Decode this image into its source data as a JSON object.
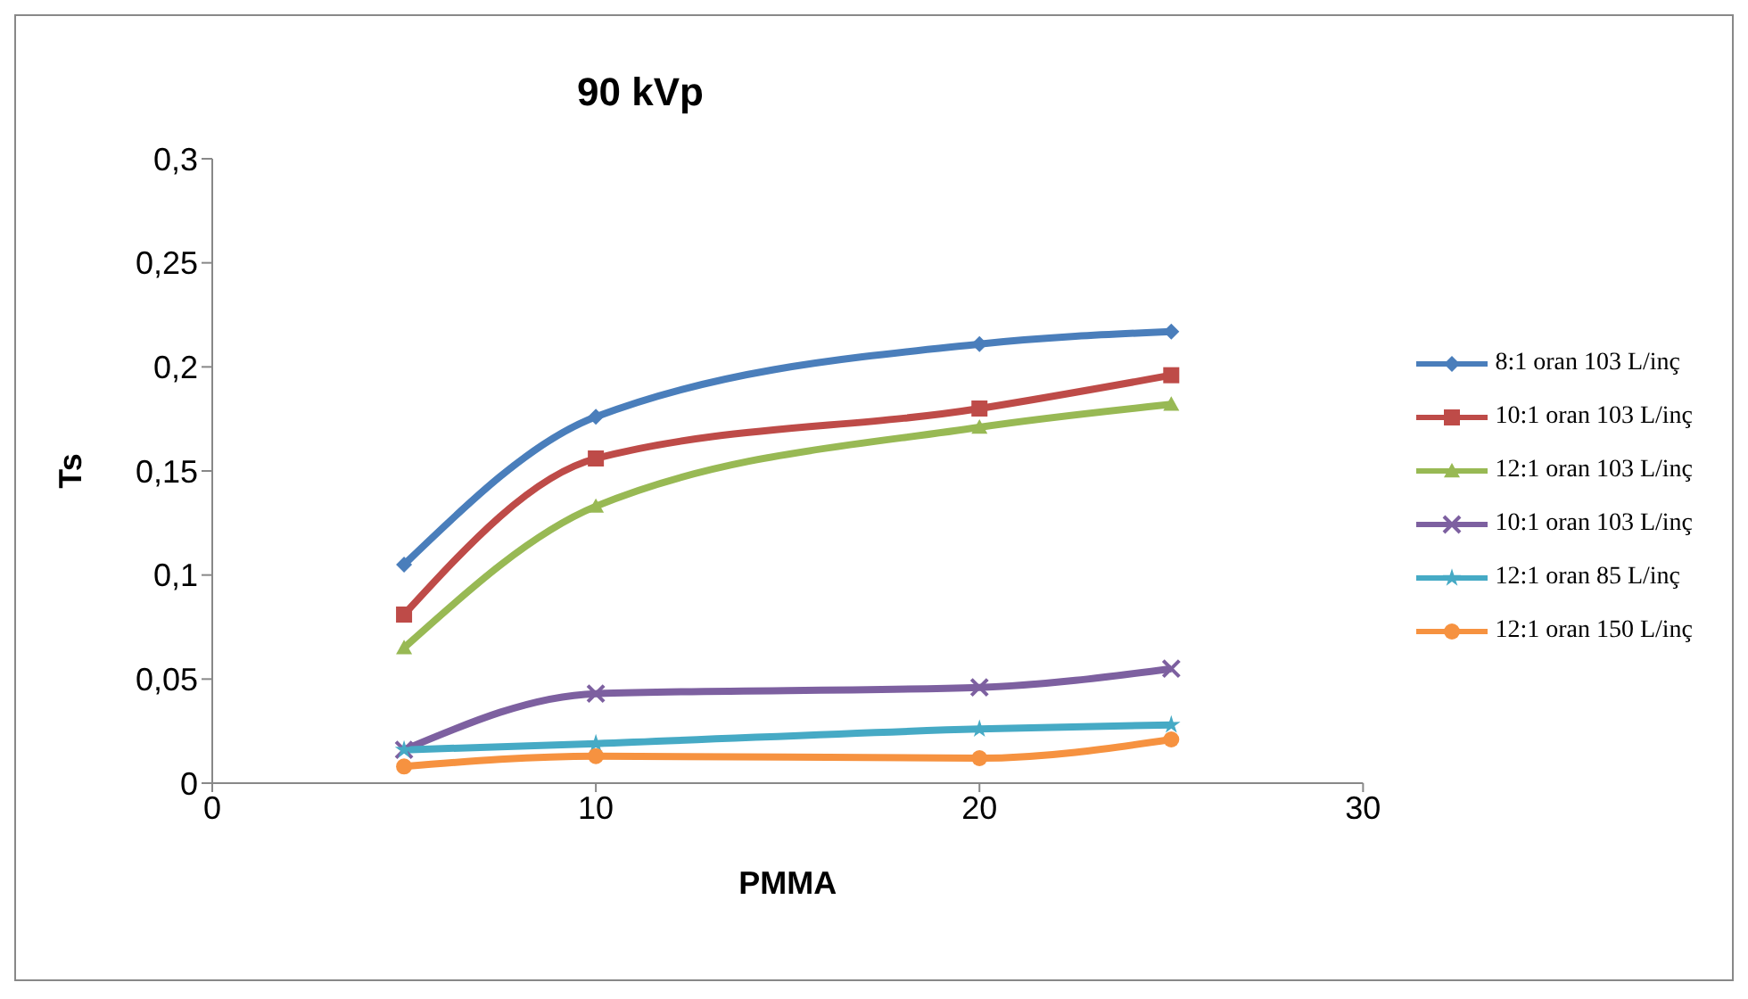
{
  "chart_data": {
    "type": "line",
    "title": "90 kVp",
    "xlabel": "PMMA",
    "ylabel": "Ts",
    "x": [
      5,
      10,
      20,
      25
    ],
    "series": [
      {
        "name": "8:1 oran 103 L/inç",
        "color": "#4a7ebb",
        "marker": "diamond",
        "values": [
          0.105,
          0.176,
          0.211,
          0.217
        ]
      },
      {
        "name": "10:1 oran 103 L/inç",
        "color": "#be4b48",
        "marker": "square",
        "values": [
          0.081,
          0.156,
          0.18,
          0.196
        ]
      },
      {
        "name": "12:1 oran 103 L/inç",
        "color": "#98b954",
        "marker": "triangle",
        "values": [
          0.065,
          0.133,
          0.171,
          0.182
        ]
      },
      {
        "name": "10:1 oran 103 L/inç",
        "color": "#7d60a0",
        "marker": "cross",
        "values": [
          0.016,
          0.043,
          0.046,
          0.055
        ]
      },
      {
        "name": "12:1 oran 85 L/inç",
        "color": "#46aac5",
        "marker": "star",
        "values": [
          0.016,
          0.019,
          0.026,
          0.028
        ]
      },
      {
        "name": "12:1 oran 150 L/inç",
        "color": "#f69240",
        "marker": "circle",
        "values": [
          0.008,
          0.013,
          0.012,
          0.021
        ]
      }
    ],
    "xlim": [
      0,
      30
    ],
    "xticks": [
      0,
      10,
      20,
      30
    ],
    "ylim": [
      0,
      0.3
    ],
    "yticks": [
      0,
      {
        "value": 0.05,
        "label": "0,05"
      },
      {
        "value": 0.1,
        "label": "0,1"
      },
      {
        "value": 0.15,
        "label": "0,15"
      },
      {
        "value": 0.2,
        "label": "0,2"
      },
      {
        "value": 0.25,
        "label": "0,25"
      },
      {
        "value": 0.3,
        "label": "0,3"
      }
    ],
    "grid": false,
    "legend": "right",
    "line_style": "solid"
  }
}
